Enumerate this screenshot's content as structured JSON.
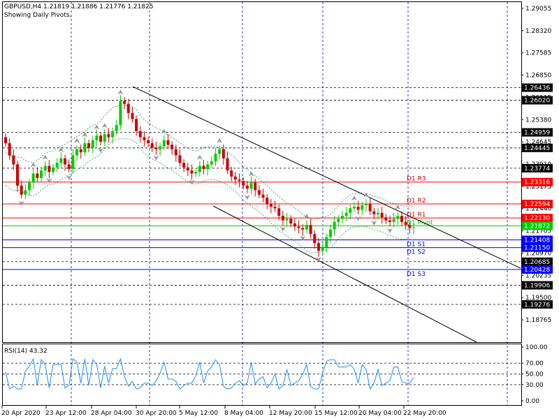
{
  "header": {
    "symbol_line": "GBPUSD,H4  1.21819 1.21886 1.21776 1.21825",
    "subtitle": "Showing Daily Pivots."
  },
  "rsi": {
    "label": "RSI(14) 43.32",
    "ticks": [
      "100.00",
      "70.00",
      "50.00",
      "30.00",
      "0.00"
    ]
  },
  "colors": {
    "bull": "#00cc00",
    "bear": "#cc0000",
    "resistance": "#ff0000",
    "support": "#0000ff",
    "pivot": "#00cc00",
    "envelope": "#2e8b57",
    "rsi_line": "#1e90ff",
    "tag_black": "#000000",
    "tag_red": "#ff0000",
    "tag_blue": "#0000ff",
    "tag_green": "#00cc00"
  },
  "chart_data": {
    "type": "candlestick",
    "title": "GBPUSD,H4",
    "ylim": [
      1.184,
      1.293
    ],
    "price_ticks": [
      "1.29055",
      "1.28320",
      "1.27585",
      "1.26850",
      "1.26115",
      "1.25380",
      "1.24645",
      "1.23910",
      "1.23175",
      "1.22440",
      "1.21705",
      "1.20970",
      "1.20235",
      "1.19500",
      "1.18765"
    ],
    "x_ticks": [
      "20 Apr 2020",
      "23 Apr 12:00",
      "28 Apr 04:00",
      "30 Apr 20:00",
      "5 May 12:00",
      "8 May 04:00",
      "12 May 20:00",
      "15 May 12:00",
      "20 May 04:00",
      "22 May 20:00"
    ],
    "price_tags": [
      {
        "value": "1.26436",
        "kind": "black"
      },
      {
        "value": "1.26020",
        "kind": "black"
      },
      {
        "value": "1.24959",
        "kind": "black"
      },
      {
        "value": "1.24445",
        "kind": "black"
      },
      {
        "value": "1.23774",
        "kind": "black"
      },
      {
        "value": "1.23316",
        "kind": "red"
      },
      {
        "value": "1.22594",
        "kind": "red"
      },
      {
        "value": "1.22130",
        "kind": "red"
      },
      {
        "value": "1.21872",
        "kind": "green"
      },
      {
        "value": "1.21408",
        "kind": "blue"
      },
      {
        "value": "1.21150",
        "kind": "blue"
      },
      {
        "value": "1.20685",
        "kind": "black"
      },
      {
        "value": "1.20428",
        "kind": "blue"
      },
      {
        "value": "1.19906",
        "kind": "black"
      },
      {
        "value": "1.19276",
        "kind": "black"
      }
    ],
    "pivots": [
      {
        "name": "D1 R3",
        "value": 1.23316,
        "kind": "resistance"
      },
      {
        "name": "D1 R2",
        "value": 1.22594,
        "kind": "resistance"
      },
      {
        "name": "D1 R1",
        "value": 1.2213,
        "kind": "resistance"
      },
      {
        "name": "D1 Pivot",
        "value": 1.21872,
        "kind": "pivot"
      },
      {
        "name": "D1 S1",
        "value": 1.21408,
        "kind": "support"
      },
      {
        "name": "D1 S2",
        "value": 1.2115,
        "kind": "support"
      },
      {
        "name": "D1 S3",
        "value": 1.20428,
        "kind": "support"
      }
    ],
    "closes": [
      1.246,
      1.242,
      1.239,
      1.232,
      1.229,
      1.2305,
      1.233,
      1.236,
      1.2345,
      1.237,
      1.2385,
      1.2365,
      1.238,
      1.2395,
      1.241,
      1.239,
      1.2375,
      1.242,
      1.244,
      1.243,
      1.246,
      1.2445,
      1.247,
      1.2485,
      1.2465,
      1.249,
      1.248,
      1.25,
      1.252,
      1.26,
      1.259,
      1.256,
      1.254,
      1.25,
      1.248,
      1.247,
      1.246,
      1.2445,
      1.244,
      1.245,
      1.247,
      1.2455,
      1.244,
      1.242,
      1.2395,
      1.238,
      1.237,
      1.236,
      1.2365,
      1.2385,
      1.2375,
      1.239,
      1.24,
      1.2425,
      1.244,
      1.241,
      1.237,
      1.235,
      1.234,
      1.2335,
      1.232,
      1.231,
      1.233,
      1.2305,
      1.229,
      1.228,
      1.226,
      1.225,
      1.2245,
      1.222,
      1.2205,
      1.221,
      1.2195,
      1.2185,
      1.218,
      1.2175,
      1.219,
      1.216,
      1.213,
      1.2105,
      1.2115,
      1.215,
      1.2175,
      1.22,
      1.221,
      1.222,
      1.223,
      1.2245,
      1.225,
      1.224,
      1.2255,
      1.226,
      1.2235,
      1.2225,
      1.223,
      1.2215,
      1.2205,
      1.22,
      1.221,
      1.222,
      1.22,
      1.219,
      1.218,
      1.2182
    ]
  }
}
